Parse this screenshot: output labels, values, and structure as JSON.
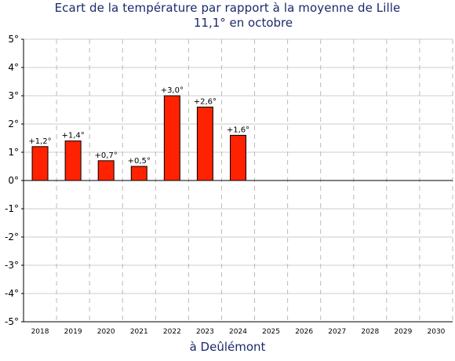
{
  "chart_data": {
    "type": "bar",
    "title": "Ecart de la température par rapport à la moyenne de Lille",
    "subtitle": "11,1° en octobre",
    "xlabel": "à Deûlémont",
    "ylabel": "",
    "categories": [
      "2018",
      "2019",
      "2020",
      "2021",
      "2022",
      "2023",
      "2024",
      "2025",
      "2026",
      "2027",
      "2028",
      "2029",
      "2030"
    ],
    "values": [
      1.2,
      1.4,
      0.7,
      0.5,
      3.0,
      2.6,
      1.6,
      null,
      null,
      null,
      null,
      null,
      null
    ],
    "data_labels": [
      "+1,2°",
      "+1,4°",
      "+0,7°",
      "+0,5°",
      "+3,0°",
      "+2,6°",
      "+1,6°",
      "",
      "",
      "",
      "",
      "",
      ""
    ],
    "ylim": [
      -5,
      5
    ],
    "yticks": [
      5,
      4,
      3,
      2,
      1,
      0,
      -1,
      -2,
      -3,
      -4,
      -5
    ],
    "ytick_labels": [
      "5°",
      "4°",
      "3°",
      "2°",
      "1°",
      "0°",
      "-1°",
      "-2°",
      "-3°",
      "-4°",
      "-5°"
    ],
    "grid": true,
    "bar_color": "#ff2200",
    "grid_color": "#cccccc"
  }
}
